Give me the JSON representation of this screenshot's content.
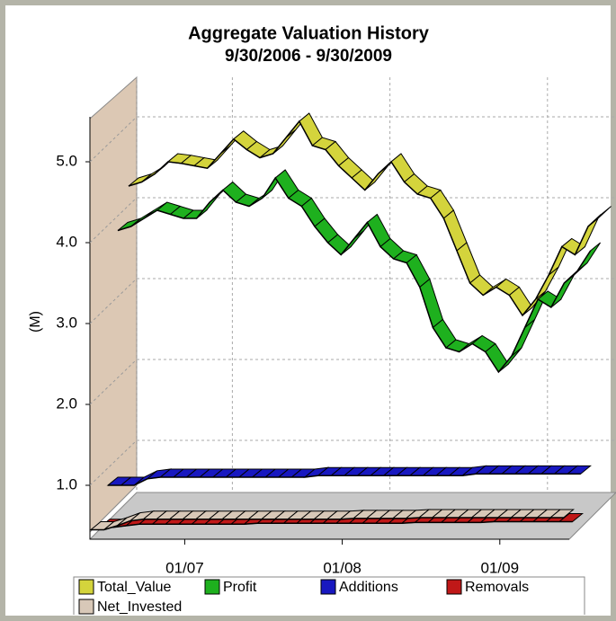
{
  "chart_data": {
    "type": "ribbon3d",
    "title": "Aggregate Valuation History",
    "subtitle": "9/30/2006 - 9/30/2009",
    "y_label": "(M)",
    "categories": [
      null,
      null,
      null,
      null,
      "01/07",
      null,
      null,
      null,
      null,
      null,
      null,
      null,
      null,
      null,
      null,
      null,
      "01/08",
      null,
      null,
      null,
      null,
      null,
      null,
      null,
      null,
      null,
      null,
      null,
      "01/09",
      null,
      null,
      null,
      null,
      null,
      null,
      null,
      null
    ],
    "ylim": [
      0.4,
      5.6
    ],
    "yticks": [
      {
        "value": 1,
        "label": "1.0"
      },
      {
        "value": 2,
        "label": "2.0"
      },
      {
        "value": 3,
        "label": "3.0"
      },
      {
        "value": 4,
        "label": "4.0"
      },
      {
        "value": 5,
        "label": "5.0"
      }
    ],
    "grid": true,
    "series": [
      {
        "name": "Total_Value",
        "color": "#d4d43c",
        "values": [
          4.7,
          4.75,
          4.85,
          5.0,
          4.98,
          4.95,
          4.92,
          5.1,
          5.28,
          5.15,
          5.05,
          5.1,
          5.3,
          5.5,
          5.2,
          5.15,
          4.95,
          4.8,
          4.65,
          4.85,
          5.0,
          4.75,
          4.6,
          4.55,
          4.3,
          3.9,
          3.5,
          3.35,
          3.45,
          3.35,
          3.1,
          3.3,
          3.6,
          3.95,
          3.85,
          4.2,
          4.35
        ]
      },
      {
        "name": "Profit",
        "color": "#1eb01e",
        "values": [
          4.15,
          4.2,
          4.3,
          4.4,
          4.35,
          4.3,
          4.3,
          4.5,
          4.65,
          4.5,
          4.45,
          4.55,
          4.8,
          4.55,
          4.45,
          4.2,
          4.0,
          3.85,
          4.05,
          4.25,
          3.95,
          3.8,
          3.75,
          3.45,
          2.95,
          2.7,
          2.65,
          2.75,
          2.65,
          2.4,
          2.6,
          2.95,
          3.3,
          3.2,
          3.5,
          3.65,
          3.9
        ]
      },
      {
        "name": "Additions",
        "color": "#1818c0",
        "values": [
          1.0,
          1.0,
          1.0,
          1.08,
          1.1,
          1.1,
          1.1,
          1.1,
          1.1,
          1.1,
          1.1,
          1.1,
          1.1,
          1.1,
          1.1,
          1.1,
          1.12,
          1.12,
          1.12,
          1.12,
          1.12,
          1.12,
          1.12,
          1.12,
          1.12,
          1.12,
          1.12,
          1.12,
          1.14,
          1.14,
          1.14,
          1.14,
          1.14,
          1.14,
          1.14,
          1.14,
          1.14
        ]
      },
      {
        "name": "Removals",
        "color": "#c01818",
        "values": [
          0.48,
          0.48,
          0.5,
          0.52,
          0.52,
          0.52,
          0.52,
          0.52,
          0.52,
          0.52,
          0.52,
          0.52,
          0.53,
          0.53,
          0.53,
          0.53,
          0.53,
          0.53,
          0.53,
          0.53,
          0.53,
          0.53,
          0.53,
          0.53,
          0.54,
          0.54,
          0.54,
          0.54,
          0.54,
          0.54,
          0.55,
          0.55,
          0.55,
          0.55,
          0.55,
          0.55,
          0.55
        ]
      },
      {
        "name": "Net_Invested",
        "color": "#d8c8b8",
        "values": [
          0.45,
          0.45,
          0.5,
          0.56,
          0.58,
          0.58,
          0.58,
          0.58,
          0.58,
          0.58,
          0.58,
          0.58,
          0.58,
          0.58,
          0.58,
          0.58,
          0.58,
          0.58,
          0.58,
          0.58,
          0.59,
          0.59,
          0.59,
          0.59,
          0.59,
          0.6,
          0.6,
          0.6,
          0.6,
          0.6,
          0.6,
          0.6,
          0.6,
          0.6,
          0.6,
          0.6,
          0.6
        ]
      }
    ]
  }
}
